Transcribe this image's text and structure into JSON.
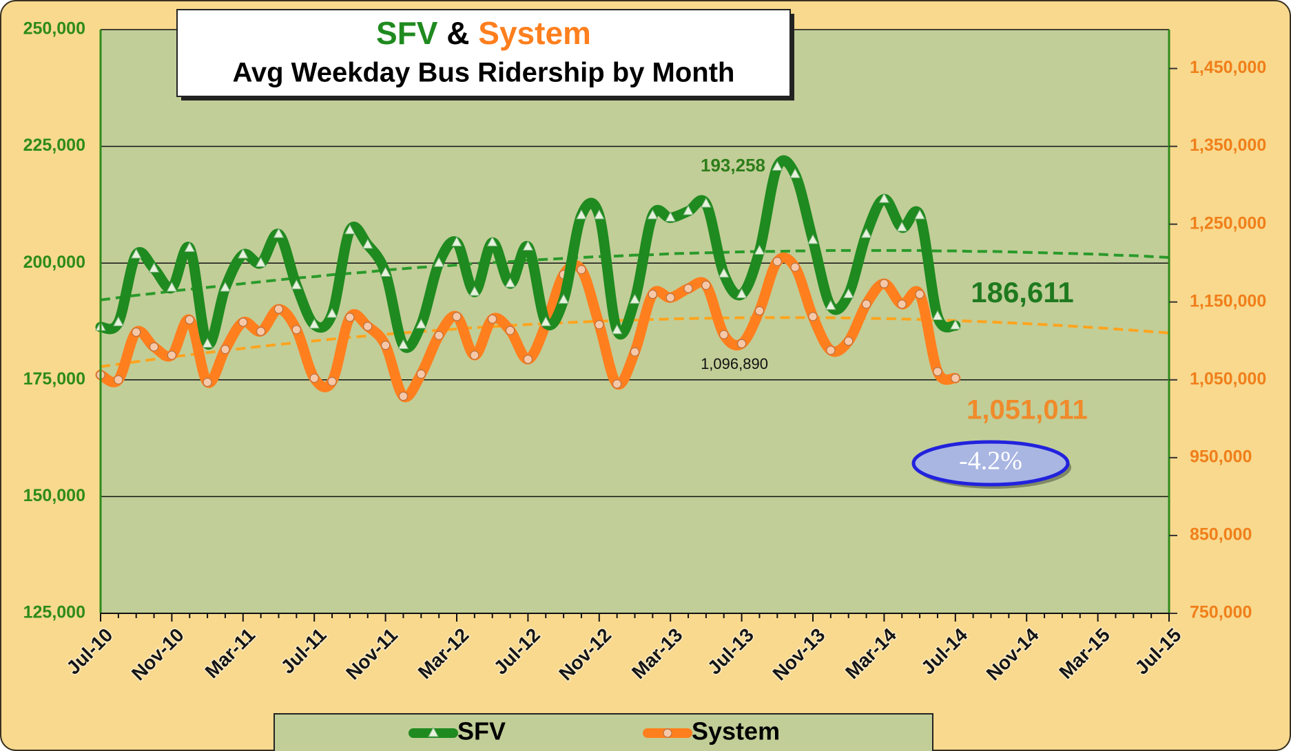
{
  "chart_data": {
    "type": "line",
    "title": [
      "SFV",
      "&",
      "System"
    ],
    "title_colors": [
      "#1f8a1f",
      "#000000",
      "#ff7f1e"
    ],
    "subtitle": "Avg Weekday Bus Ridership by Month",
    "categories": [
      "Jul-10",
      null,
      null,
      null,
      "Nov-10",
      null,
      null,
      null,
      "Mar-11",
      null,
      null,
      null,
      "Jul-11",
      null,
      null,
      null,
      "Nov-11",
      null,
      null,
      null,
      "Mar-12",
      null,
      null,
      null,
      "Jul-12",
      null,
      null,
      null,
      "Nov-12",
      null,
      null,
      null,
      "Mar-13",
      null,
      null,
      null,
      "Jul-13",
      null,
      null,
      null,
      "Nov-13",
      null,
      null,
      null,
      "Mar-14",
      null,
      null,
      null,
      "Jul-14",
      null,
      null,
      null,
      "Nov-14",
      null,
      null,
      null,
      "Mar-15",
      null,
      null,
      null,
      "Jul-15"
    ],
    "series": [
      {
        "name": "SFV",
        "color": "#1f8a1f",
        "marker": "triangle",
        "axis": "y",
        "values": [
          186300,
          187300,
          201800,
          198800,
          194700,
          203200,
          182700,
          194700,
          201800,
          200000,
          206200,
          195200,
          186800,
          189100,
          207000,
          203900,
          197900,
          182400,
          186800,
          200000,
          204400,
          193800,
          204400,
          195600,
          203500,
          187300,
          192100,
          210200,
          210200,
          185600,
          192100,
          210200,
          209700,
          211100,
          212700,
          197700,
          193300,
          202600,
          220600,
          219000,
          204900,
          190800,
          193300,
          206200,
          213700,
          207600,
          210200,
          188600,
          186600,
          null,
          null,
          null,
          null,
          null,
          null,
          null,
          null,
          null,
          null,
          null,
          null
        ]
      },
      {
        "name": "System",
        "color": "#ff7f1e",
        "marker": "circle",
        "axis": "y2",
        "values": [
          1056400,
          1050000,
          1111300,
          1092300,
          1081700,
          1127100,
          1046800,
          1089100,
          1124000,
          1112300,
          1140800,
          1114500,
          1052100,
          1047900,
          1130300,
          1118700,
          1094400,
          1028900,
          1057400,
          1107000,
          1131300,
          1081700,
          1128100,
          1113400,
          1076400,
          1120800,
          1185200,
          1191600,
          1120800,
          1044700,
          1085900,
          1159900,
          1155600,
          1167300,
          1171500,
          1108100,
          1096500,
          1138700,
          1202100,
          1194700,
          1131300,
          1088000,
          1099700,
          1147200,
          1173600,
          1147200,
          1159900,
          1060600,
          1052100,
          null,
          null,
          null,
          null,
          null,
          null,
          null,
          null,
          null,
          null,
          null,
          null
        ]
      }
    ],
    "trendlines": [
      {
        "color": "#2a9a2a",
        "axis": "y",
        "values": [
          192100,
          192600,
          193100,
          193500,
          194000,
          194400,
          194800,
          195200,
          195600,
          196000,
          196400,
          196800,
          197100,
          197500,
          197800,
          198100,
          198500,
          198800,
          199100,
          199300,
          199600,
          199900,
          200100,
          200300,
          200600,
          200800,
          201000,
          201200,
          201400,
          201500,
          201700,
          201800,
          202000,
          202100,
          202200,
          202300,
          202400,
          202500,
          202500,
          202600,
          202600,
          202700,
          202700,
          202700,
          202700,
          202700,
          202700,
          202600,
          202600,
          202500,
          202500,
          202400,
          202300,
          202200,
          202100,
          202000,
          201900,
          201700,
          201600,
          201400,
          201200
        ]
      },
      {
        "color": "#ffa41e",
        "axis": "y2",
        "values": [
          1066900,
          1070100,
          1073300,
          1076400,
          1079300,
          1082200,
          1085000,
          1087800,
          1090400,
          1093000,
          1095400,
          1097800,
          1100100,
          1102300,
          1104500,
          1106500,
          1108500,
          1110300,
          1112100,
          1113800,
          1115400,
          1117000,
          1118400,
          1119800,
          1121100,
          1122300,
          1123400,
          1124400,
          1125300,
          1126200,
          1126900,
          1127600,
          1128200,
          1128700,
          1129100,
          1129500,
          1129700,
          1129900,
          1130000,
          1130000,
          1129900,
          1129700,
          1129400,
          1129100,
          1128700,
          1128200,
          1127600,
          1126900,
          1126100,
          1125200,
          1124300,
          1123300,
          1122200,
          1121000,
          1119700,
          1118300,
          1116900,
          1115300,
          1113700,
          1112000,
          1110200
        ]
      }
    ],
    "ylim": [
      125000,
      250000
    ],
    "yticks": [
      {
        "value": 125000,
        "label": "125,000"
      },
      {
        "value": 150000,
        "label": "150,000"
      },
      {
        "value": 175000,
        "label": "175,000"
      },
      {
        "value": 200000,
        "label": "200,000"
      },
      {
        "value": 225000,
        "label": "225,000"
      },
      {
        "value": 250000,
        "label": "250,000"
      }
    ],
    "y2lim": [
      750000,
      1500000
    ],
    "y2ticks": [
      {
        "value": 750000,
        "label": "750,000"
      },
      {
        "value": 850000,
        "label": "850,000"
      },
      {
        "value": 950000,
        "label": "950,000"
      },
      {
        "value": 1050000,
        "label": "1,050,000"
      },
      {
        "value": 1150000,
        "label": "1,150,000"
      },
      {
        "value": 1250000,
        "label": "1,250,000"
      },
      {
        "value": 1350000,
        "label": "1,350,000"
      },
      {
        "value": 1450000,
        "label": "1,450,000"
      }
    ],
    "y_color": "#2e8b1a",
    "y2_color": "#f07f1a",
    "grid": true,
    "legend": "bottom",
    "annotations": [
      {
        "text": "193,258",
        "color": "#2e7d1a"
      },
      {
        "text": "1,096,890",
        "color": "#111111"
      },
      {
        "text": "186,611",
        "color": "#1f7a1f"
      },
      {
        "text": "1,051,011",
        "color": "#f08a2a"
      },
      {
        "text": "-4.2%",
        "color": "#ffffff"
      }
    ]
  }
}
